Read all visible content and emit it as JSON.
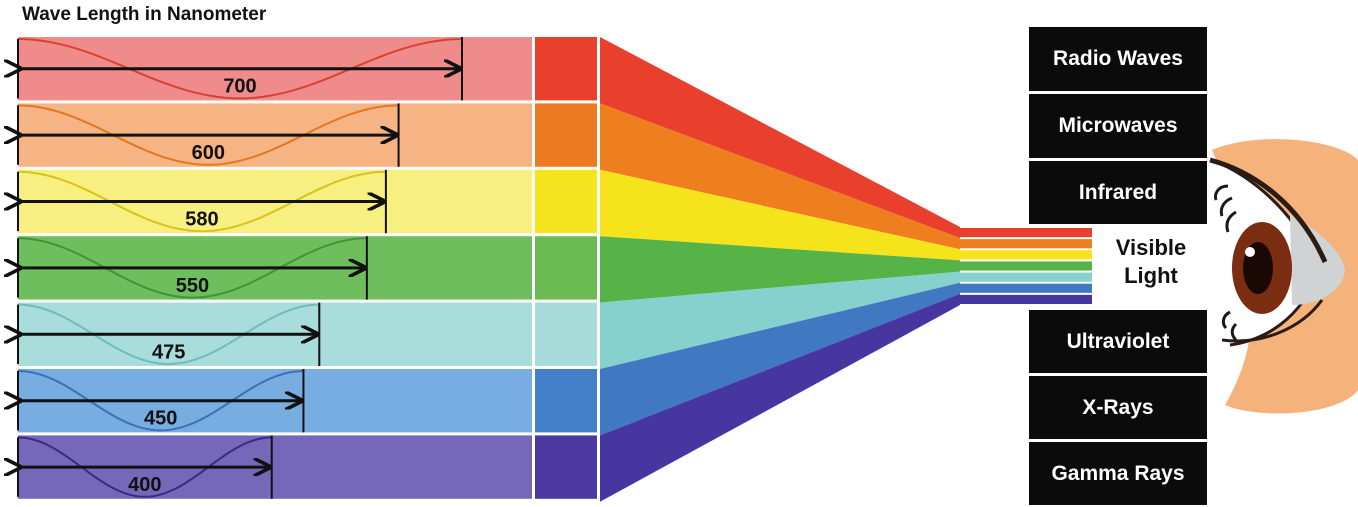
{
  "title": "Wave Length in Nanometer",
  "bands": [
    {
      "value": "700",
      "fill": "#ef8b8b",
      "mid": "#e8402c",
      "beam": "#e8402c",
      "wave": "#d8432c",
      "length_nm": 700
    },
    {
      "value": "600",
      "fill": "#f6b383",
      "mid": "#ec7a22",
      "beam": "#ef7f1e",
      "wave": "#e4771f",
      "length_nm": 600
    },
    {
      "value": "580",
      "fill": "#f7ef80",
      "mid": "#f4e41e",
      "beam": "#f5e31c",
      "wave": "#d8c21c",
      "length_nm": 580
    },
    {
      "value": "550",
      "fill": "#6fbe5e",
      "mid": "#6cbb52",
      "beam": "#55b348",
      "wave": "#3f9637",
      "length_nm": 550
    },
    {
      "value": "475",
      "fill": "#a8dddc",
      "mid": "#a8dcdb",
      "beam": "#86d0cd",
      "wave": "#6fbdbb",
      "length_nm": 475
    },
    {
      "value": "450",
      "fill": "#78ade1",
      "mid": "#4380c9",
      "beam": "#4178c2",
      "wave": "#3d70b4",
      "length_nm": 450
    },
    {
      "value": "400",
      "fill": "#7567b9",
      "mid": "#4b38a1",
      "beam": "#4735a0",
      "wave": "#3b2a83",
      "length_nm": 400
    }
  ],
  "spectrum_top": [
    "Radio Waves",
    "Microwaves",
    "Infrared"
  ],
  "visible_label": {
    "line1": "Visible",
    "line2": "Light"
  },
  "spectrum_bottom": [
    "Ultraviolet",
    "X-Rays",
    "Gamma Rays"
  ],
  "eye": {
    "skin": "#f5b27b",
    "iris": "#7a2d10",
    "pupil": "#1a0805",
    "lash": "#1a1a1a"
  }
}
